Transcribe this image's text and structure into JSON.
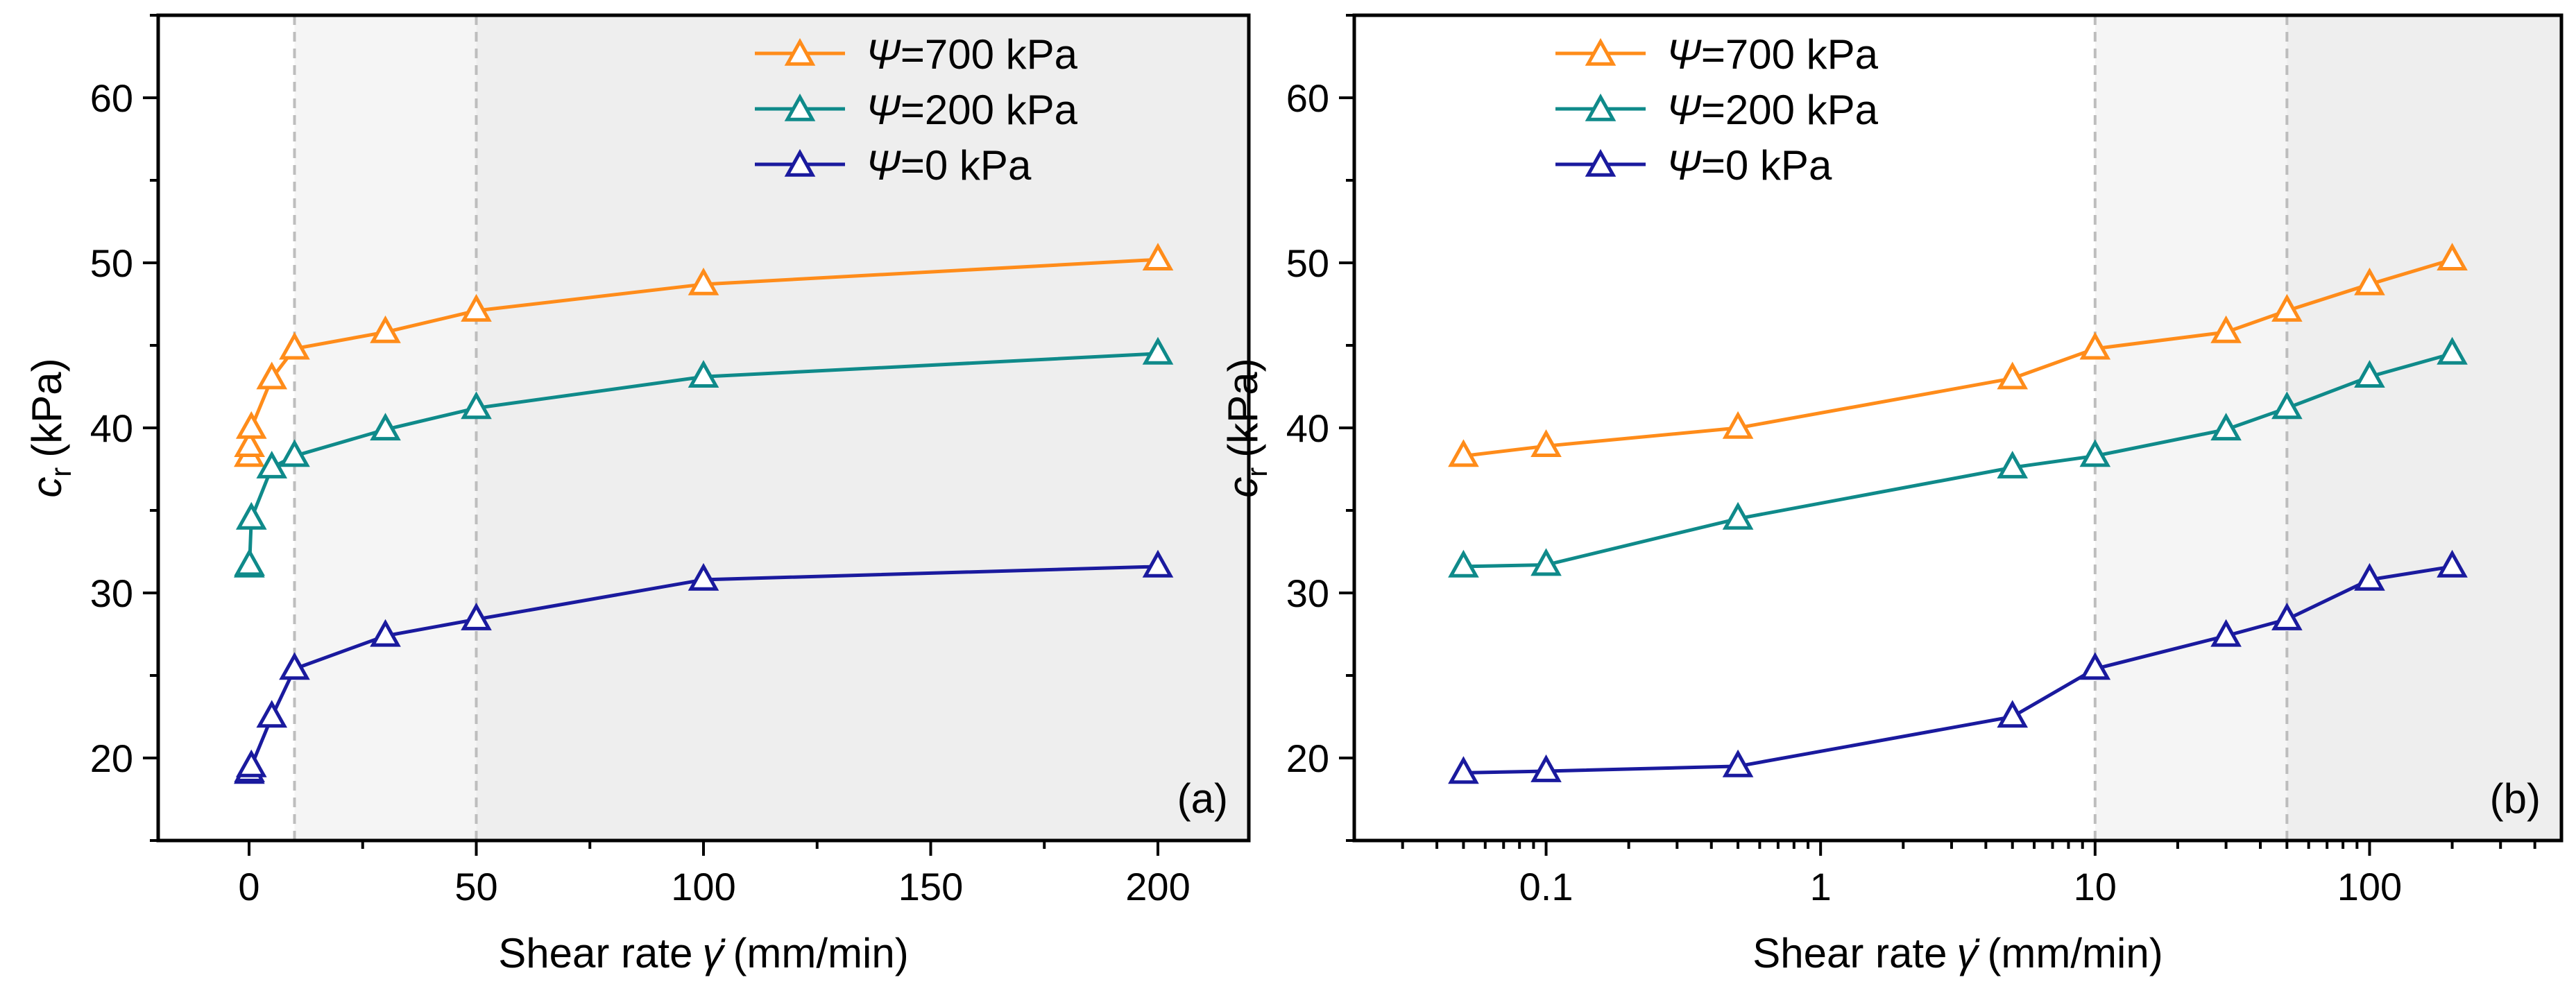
{
  "chart_data": [
    {
      "type": "line",
      "panel_label": "(a)",
      "xscale": "linear",
      "xlabel": "Shear rate",
      "xlabel_symbol": "γ̇",
      "xlabel_unit": "(mm/min)",
      "ylabel_symbol": "c",
      "ylabel_sub": "r",
      "ylabel_unit": "(kPa)",
      "xlim": [
        -20,
        220
      ],
      "ylim": [
        15,
        65
      ],
      "xticks": [
        0,
        50,
        100,
        150,
        200
      ],
      "xtick_labels": [
        "0",
        "50",
        "100",
        "150",
        "200"
      ],
      "yticks": [
        20,
        30,
        40,
        50,
        60
      ],
      "ytick_labels": [
        "20",
        "30",
        "40",
        "50",
        "60"
      ],
      "regions": [
        {
          "from": 10,
          "to": 50,
          "color": "#f5f5f5"
        },
        {
          "from": 50,
          "to": 220,
          "color": "#eeeeee"
        }
      ],
      "vlines": [
        10,
        50
      ],
      "legend_position": "top-right",
      "series": [
        {
          "name_sym": "Ψ",
          "name_rest": "=700 kPa",
          "color": "#ff8c1a",
          "x": [
            0.05,
            0.1,
            0.5,
            5,
            10,
            30,
            50,
            100,
            200
          ],
          "y": [
            38.3,
            38.9,
            40.0,
            43.0,
            44.8,
            45.8,
            47.1,
            48.7,
            50.2
          ]
        },
        {
          "name_sym": "Ψ",
          "name_rest": "=200 kPa",
          "color": "#0f8a8a",
          "x": [
            0.05,
            0.1,
            0.5,
            5,
            10,
            30,
            50,
            100,
            200
          ],
          "y": [
            31.6,
            31.7,
            34.5,
            37.6,
            38.3,
            39.9,
            41.2,
            43.1,
            44.5
          ]
        },
        {
          "name_sym": "Ψ",
          "name_rest": "=0 kPa",
          "color": "#1a1a9e",
          "x": [
            0.05,
            0.1,
            0.5,
            5,
            10,
            30,
            50,
            100,
            200
          ],
          "y": [
            19.1,
            19.2,
            19.5,
            22.5,
            25.4,
            27.4,
            28.4,
            30.8,
            31.6
          ]
        }
      ]
    },
    {
      "type": "line",
      "panel_label": "(b)",
      "xscale": "log",
      "xlabel": "Shear rate",
      "xlabel_symbol": "γ̇",
      "xlabel_unit": "(mm/min)",
      "ylabel_symbol": "c",
      "ylabel_sub": "r",
      "ylabel_unit": "(kPa)",
      "xlim": [
        0.02,
        500
      ],
      "ylim": [
        15,
        65
      ],
      "xticks": [
        0.1,
        1,
        10,
        100
      ],
      "xtick_labels": [
        "0.1",
        "1",
        "10",
        "100"
      ],
      "yticks": [
        20,
        30,
        40,
        50,
        60
      ],
      "ytick_labels": [
        "20",
        "30",
        "40",
        "50",
        "60"
      ],
      "regions": [
        {
          "from": 10,
          "to": 50,
          "color": "#f5f5f5"
        },
        {
          "from": 50,
          "to": 500,
          "color": "#eeeeee"
        }
      ],
      "vlines": [
        10,
        50
      ],
      "legend_position": "top-left",
      "series": [
        {
          "name_sym": "Ψ",
          "name_rest": "=700 kPa",
          "color": "#ff8c1a",
          "x": [
            0.05,
            0.1,
            0.5,
            5,
            10,
            30,
            50,
            100,
            200
          ],
          "y": [
            38.3,
            38.9,
            40.0,
            43.0,
            44.8,
            45.8,
            47.1,
            48.7,
            50.2
          ]
        },
        {
          "name_sym": "Ψ",
          "name_rest": "=200 kPa",
          "color": "#0f8a8a",
          "x": [
            0.05,
            0.1,
            0.5,
            5,
            10,
            30,
            50,
            100,
            200
          ],
          "y": [
            31.6,
            31.7,
            34.5,
            37.6,
            38.3,
            39.9,
            41.2,
            43.1,
            44.5
          ]
        },
        {
          "name_sym": "Ψ",
          "name_rest": "=0 kPa",
          "color": "#1a1a9e",
          "x": [
            0.05,
            0.1,
            0.5,
            5,
            10,
            30,
            50,
            100,
            200
          ],
          "y": [
            19.1,
            19.2,
            19.5,
            22.5,
            25.4,
            27.4,
            28.4,
            30.8,
            31.6
          ]
        }
      ]
    }
  ]
}
